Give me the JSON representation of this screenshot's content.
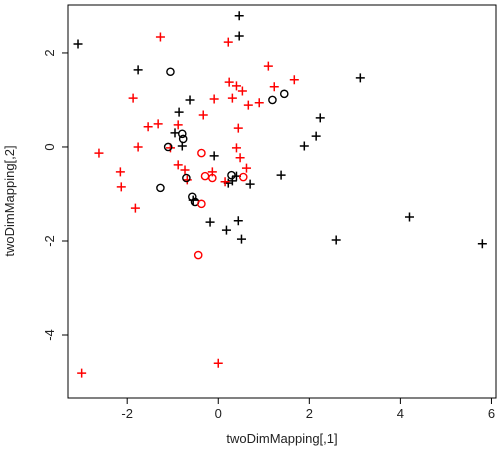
{
  "chart_data": {
    "type": "scatter",
    "xlabel": "twoDimMapping[,1]",
    "ylabel": "twoDimMapping[,2]",
    "xlim": [
      -3.3,
      6.1
    ],
    "ylim": [
      -5.34,
      3.02
    ],
    "xticks": [
      -2,
      0,
      2,
      4,
      6
    ],
    "yticks": [
      -4,
      -2,
      0,
      2
    ],
    "series": [
      {
        "color": "#000000",
        "marker": "+",
        "x": [
          -3.08,
          0.46,
          0.46,
          -1.76,
          3.12,
          2.24,
          2.15,
          1.89,
          -0.62,
          -0.86,
          -0.95,
          -0.79,
          -0.09,
          0.22,
          0.31,
          0.4,
          0.7,
          1.38,
          -0.55,
          0.18,
          -0.18,
          0.44,
          0.51,
          2.59,
          4.2,
          5.8
        ],
        "y": [
          2.19,
          2.79,
          2.36,
          1.64,
          1.47,
          0.62,
          0.23,
          0.02,
          1.0,
          0.74,
          0.3,
          0.02,
          -0.19,
          -0.77,
          -0.72,
          -0.62,
          -0.79,
          -0.6,
          -1.13,
          -1.77,
          -1.6,
          -1.57,
          -1.96,
          -1.98,
          -1.49,
          -2.06
        ]
      },
      {
        "color": "#ff0000",
        "marker": "+",
        "x": [
          -3.0,
          0,
          -1.27,
          0.22,
          1.1,
          1.67,
          1.23,
          0.24,
          0.4,
          0.53,
          0.31,
          0.9,
          0.66,
          -1.87,
          -1.54,
          -1.32,
          -0.88,
          -0.09,
          -0.33,
          0.44,
          0.4,
          0.48,
          -0.88,
          -2.15,
          -2.13,
          -1.82,
          -2.62,
          -1.76,
          -1.05,
          -0.73,
          -0.68,
          0.62,
          0.15,
          -0.13
        ],
        "y": [
          -4.81,
          -4.6,
          2.34,
          2.23,
          1.72,
          1.43,
          1.28,
          1.38,
          1.3,
          1.19,
          1.04,
          0.94,
          0.89,
          1.04,
          0.43,
          0.49,
          0.47,
          1.02,
          0.68,
          0.4,
          -0.02,
          -0.23,
          -0.38,
          -0.53,
          -0.85,
          -1.3,
          -0.13,
          0.0,
          -0.02,
          -0.49,
          -0.7,
          -0.45,
          -0.74,
          -0.53
        ]
      },
      {
        "color": "#000000",
        "marker": "o",
        "x": [
          -1.05,
          1.45,
          1.19,
          -0.79,
          -0.77,
          -1.1,
          -1.27,
          -0.7,
          0.29,
          -0.51,
          -0.57
        ],
        "y": [
          1.6,
          1.13,
          1.0,
          0.28,
          0.17,
          0.0,
          -0.87,
          -0.66,
          -0.6,
          -1.17,
          -1.06
        ]
      },
      {
        "color": "#ff0000",
        "marker": "o",
        "x": [
          -0.37,
          -0.29,
          -0.13,
          0.55,
          -0.37,
          -0.44
        ],
        "y": [
          -0.13,
          -0.62,
          -0.66,
          -0.64,
          -1.21,
          -2.3
        ]
      }
    ]
  }
}
